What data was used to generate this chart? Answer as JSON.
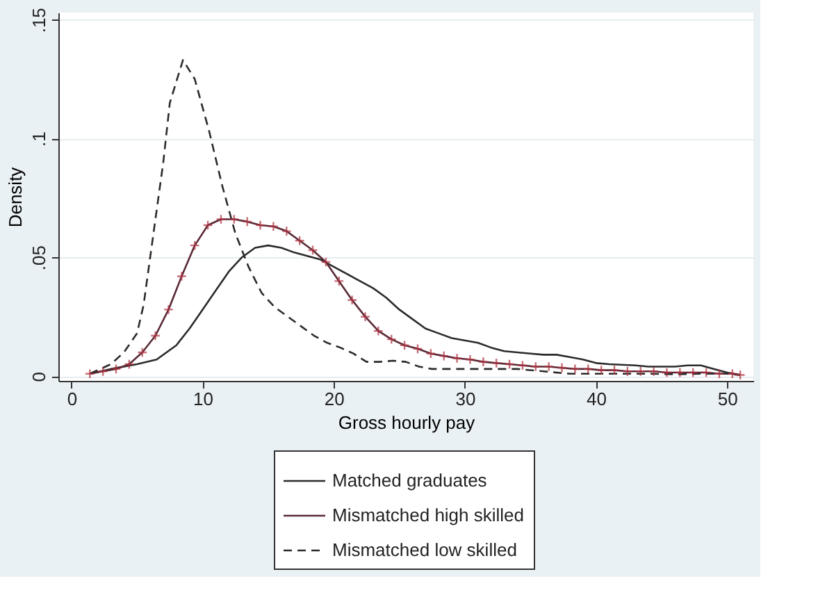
{
  "chart_data": {
    "type": "line",
    "xlabel": "Gross hourly pay",
    "ylabel": "Density",
    "xlim": [
      -1,
      52
    ],
    "ylim": [
      -0.002,
      0.153
    ],
    "xticks": [
      0,
      10,
      20,
      30,
      40,
      50
    ],
    "yticks": [
      0,
      {
        "value": 0.05,
        "label": ".05"
      },
      {
        "value": 0.1,
        "label": ".1"
      },
      {
        "value": 0.15,
        "label": ".15"
      }
    ],
    "grid": "y",
    "legend": "bottom",
    "series": [
      {
        "name": "Matched graduates",
        "color": "#2b2b2b",
        "line_style": "solid",
        "marker": "none",
        "x": [
          1.4,
          3,
          5,
          6.5,
          8,
          9,
          10,
          11,
          12,
          13,
          14,
          15,
          16,
          17,
          19,
          20,
          22,
          23,
          24,
          25,
          26,
          27,
          28,
          29,
          31,
          32,
          33,
          35,
          36,
          37,
          38,
          39,
          40,
          41,
          43,
          44,
          46,
          47,
          48,
          49,
          50,
          51
        ],
        "values": [
          0.001,
          0.003,
          0.005,
          0.007,
          0.013,
          0.02,
          0.028,
          0.036,
          0.044,
          0.05,
          0.054,
          0.055,
          0.054,
          0.052,
          0.049,
          0.046,
          0.04,
          0.037,
          0.033,
          0.028,
          0.024,
          0.02,
          0.018,
          0.016,
          0.014,
          0.012,
          0.0105,
          0.0095,
          0.009,
          0.009,
          0.008,
          0.007,
          0.0055,
          0.005,
          0.0045,
          0.004,
          0.004,
          0.0045,
          0.0045,
          0.003,
          0.0015,
          0.0005
        ]
      },
      {
        "name": "Mismatched high skilled",
        "color": "#5a2a35",
        "line_style": "solid",
        "marker": "cross",
        "x": [
          1.4,
          2.4,
          3.4,
          4.4,
          5.4,
          6.4,
          7.4,
          8.4,
          9.4,
          10.4,
          11.4,
          12.4,
          13.4,
          14.4,
          15.4,
          16.4,
          17.4,
          18.4,
          19.4,
          20.4,
          21.4,
          22.4,
          23.4,
          24.4,
          25.4,
          26.4,
          27.4,
          28.4,
          29.4,
          30.4,
          31.4,
          32.4,
          33.4,
          34.4,
          35.4,
          36.4,
          37.4,
          38.4,
          39.4,
          40.4,
          41.4,
          42.4,
          43.4,
          44.4,
          45.4,
          46.4,
          47.4,
          48.4,
          49.4,
          50.4,
          51
        ],
        "values": [
          0.001,
          0.002,
          0.003,
          0.005,
          0.01,
          0.017,
          0.028,
          0.042,
          0.055,
          0.0635,
          0.066,
          0.066,
          0.065,
          0.0635,
          0.063,
          0.061,
          0.057,
          0.053,
          0.048,
          0.04,
          0.032,
          0.025,
          0.019,
          0.0155,
          0.013,
          0.0115,
          0.0095,
          0.0085,
          0.0075,
          0.007,
          0.006,
          0.0055,
          0.005,
          0.0045,
          0.004,
          0.004,
          0.0035,
          0.003,
          0.003,
          0.0025,
          0.0025,
          0.002,
          0.002,
          0.002,
          0.0015,
          0.0015,
          0.0015,
          0.0015,
          0.001,
          0.001,
          0.0005
        ]
      },
      {
        "name": "Mismatched low skilled",
        "color": "#2b2b2b",
        "line_style": "dashed",
        "marker": "none",
        "x": [
          1.4,
          3,
          4,
          5,
          5.5,
          6.5,
          7,
          7.5,
          8.5,
          9.4,
          10.5,
          11.5,
          12.5,
          13.5,
          14.5,
          15.5,
          16.5,
          17.5,
          18.5,
          19.5,
          20.5,
          21.5,
          22.5,
          23.5,
          24.5,
          25.5,
          26.5,
          27.5,
          28.5,
          30,
          32,
          34,
          36,
          38,
          40,
          42,
          44,
          46,
          48,
          50,
          51
        ],
        "values": [
          0.001,
          0.005,
          0.01,
          0.018,
          0.03,
          0.07,
          0.09,
          0.115,
          0.133,
          0.125,
          0.103,
          0.08,
          0.06,
          0.046,
          0.035,
          0.029,
          0.025,
          0.021,
          0.017,
          0.014,
          0.012,
          0.0095,
          0.006,
          0.006,
          0.0065,
          0.006,
          0.004,
          0.003,
          0.003,
          0.003,
          0.003,
          0.003,
          0.002,
          0.001,
          0.001,
          0.001,
          0.001,
          0.0008,
          0.001,
          0.001,
          0.0005
        ]
      }
    ]
  }
}
